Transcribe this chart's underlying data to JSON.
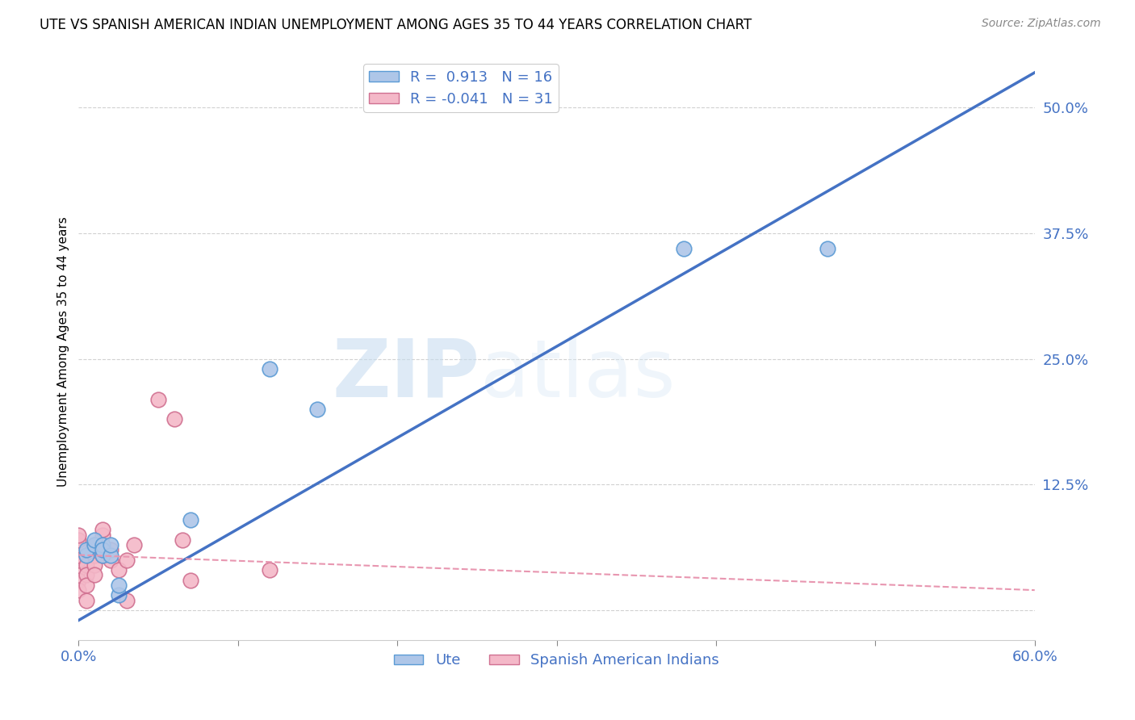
{
  "title": "UTE VS SPANISH AMERICAN INDIAN UNEMPLOYMENT AMONG AGES 35 TO 44 YEARS CORRELATION CHART",
  "source": "Source: ZipAtlas.com",
  "ylabel": "Unemployment Among Ages 35 to 44 years",
  "xlim": [
    0.0,
    0.6
  ],
  "ylim": [
    -0.03,
    0.545
  ],
  "xticks": [
    0.0,
    0.1,
    0.2,
    0.3,
    0.4,
    0.5,
    0.6
  ],
  "xticklabels": [
    "0.0%",
    "",
    "",
    "",
    "",
    "",
    "60.0%"
  ],
  "yticks": [
    0.0,
    0.125,
    0.25,
    0.375,
    0.5
  ],
  "yticklabels": [
    "",
    "12.5%",
    "25.0%",
    "37.5%",
    "50.0%"
  ],
  "grid_color": "#cccccc",
  "background_color": "#ffffff",
  "watermark_text": "ZIP",
  "watermark_text2": "atlas",
  "ute_color": "#aec6e8",
  "ute_edge_color": "#5b9bd5",
  "spanish_color": "#f4b8c8",
  "spanish_edge_color": "#d07090",
  "ute_R": 0.913,
  "ute_N": 16,
  "spanish_R": -0.041,
  "spanish_N": 31,
  "ute_line_color": "#4472c4",
  "spanish_line_color": "#e896b0",
  "tick_color": "#4472c4",
  "legend_label_ute": "Ute",
  "legend_label_spanish": "Spanish American Indians",
  "ute_points_x": [
    0.005,
    0.005,
    0.01,
    0.01,
    0.015,
    0.015,
    0.015,
    0.02,
    0.02,
    0.025,
    0.025,
    0.07,
    0.12,
    0.15,
    0.38,
    0.47
  ],
  "ute_points_y": [
    0.055,
    0.06,
    0.065,
    0.07,
    0.055,
    0.065,
    0.06,
    0.055,
    0.065,
    0.015,
    0.025,
    0.09,
    0.24,
    0.2,
    0.36,
    0.36
  ],
  "spanish_points_x": [
    0.0,
    0.0,
    0.0,
    0.0,
    0.0,
    0.0,
    0.0,
    0.0,
    0.005,
    0.005,
    0.005,
    0.005,
    0.005,
    0.01,
    0.01,
    0.01,
    0.01,
    0.015,
    0.015,
    0.015,
    0.02,
    0.02,
    0.025,
    0.03,
    0.03,
    0.035,
    0.05,
    0.06,
    0.065,
    0.07,
    0.12
  ],
  "spanish_points_y": [
    0.04,
    0.03,
    0.02,
    0.05,
    0.055,
    0.065,
    0.07,
    0.075,
    0.055,
    0.045,
    0.035,
    0.025,
    0.01,
    0.055,
    0.065,
    0.045,
    0.035,
    0.055,
    0.075,
    0.08,
    0.05,
    0.06,
    0.04,
    0.05,
    0.01,
    0.065,
    0.21,
    0.19,
    0.07,
    0.03,
    0.04
  ],
  "ute_line_x": [
    0.0,
    0.6
  ],
  "ute_line_y": [
    -0.01,
    0.535
  ],
  "spanish_line_x": [
    0.0,
    0.6
  ],
  "spanish_line_y": [
    0.055,
    0.02
  ]
}
